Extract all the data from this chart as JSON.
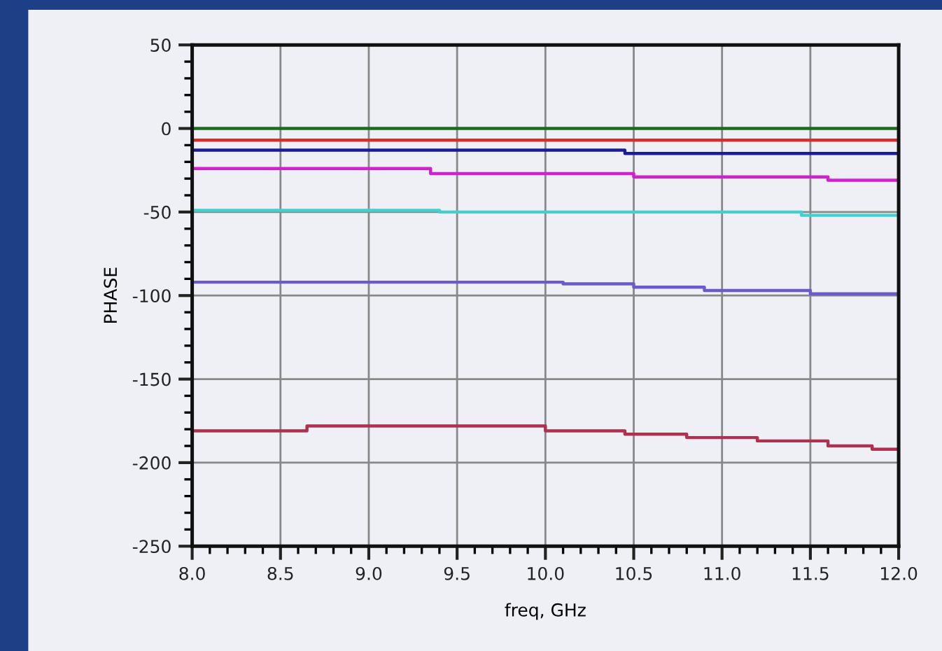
{
  "chart_data": {
    "type": "step",
    "xlabel": "freq, GHz",
    "ylabel": "PHASE",
    "xlim": [
      8,
      12
    ],
    "ylim": [
      -250,
      50
    ],
    "xticks": [
      {
        "value": 8,
        "label": "8.0"
      },
      {
        "value": 8.5,
        "label": "8.5"
      },
      {
        "value": 9,
        "label": "9.0"
      },
      {
        "value": 9.5,
        "label": "9.5"
      },
      {
        "value": 10,
        "label": "10.0"
      },
      {
        "value": 10.5,
        "label": "10.5"
      },
      {
        "value": 11,
        "label": "11.0"
      },
      {
        "value": 11.5,
        "label": "11.5"
      },
      {
        "value": 12,
        "label": "12.0"
      }
    ],
    "yticks": [
      50,
      0,
      -50,
      -100,
      -150,
      -200,
      -250
    ],
    "grid": true,
    "line_style": "solid",
    "series": [
      {
        "color": "#1e6b1e",
        "x": [
          8,
          12
        ],
        "values": [
          0,
          0
        ]
      },
      {
        "color": "#d03030",
        "x": [
          8,
          12
        ],
        "values": [
          -7,
          -7
        ]
      },
      {
        "color": "#1a1a9a",
        "x": [
          8,
          10.45,
          12
        ],
        "values": [
          -13,
          -15,
          -15
        ]
      },
      {
        "color": "#d020d0",
        "x": [
          8,
          9.35,
          10.5,
          11.6,
          12
        ],
        "values": [
          -24,
          -27,
          -29,
          -31,
          -31
        ]
      },
      {
        "color": "#40d0d0",
        "x": [
          8,
          9.4,
          11.45,
          12
        ],
        "values": [
          -49,
          -50,
          -52,
          -52
        ]
      },
      {
        "color": "#6a5acd",
        "x": [
          8,
          10.1,
          10.5,
          10.9,
          11.5,
          12
        ],
        "values": [
          -92,
          -93,
          -95,
          -97,
          -99,
          -99
        ]
      },
      {
        "color": "#b03050",
        "x": [
          8,
          8.65,
          10,
          10.45,
          10.8,
          11.2,
          11.6,
          11.85,
          12
        ],
        "values": [
          -181,
          -178,
          -181,
          -183,
          -185,
          -187,
          -190,
          -192,
          -192
        ]
      }
    ]
  }
}
